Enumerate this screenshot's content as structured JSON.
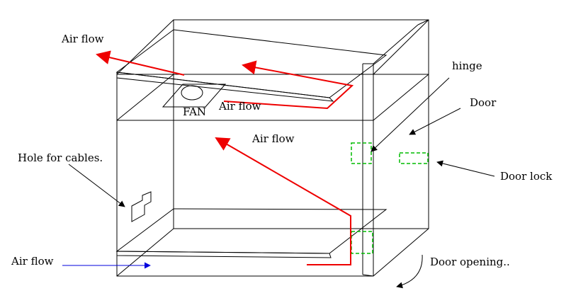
{
  "labels": {
    "air_flow_top_left": "Air flow",
    "air_flow_fan": "Air flow",
    "air_flow_middle": "Air flow",
    "air_flow_bottom": "Air flow",
    "fan": "FAN",
    "hinge": "hinge",
    "door": "Door",
    "door_lock": "Door lock",
    "hole_for_cables": "Hole for cables.",
    "door_opening": "Door opening.."
  },
  "colors": {
    "outline": "#000000",
    "air_path": "#ee0000",
    "intake_arrow": "#0000dd",
    "dashed_parts": "#00bb00"
  }
}
